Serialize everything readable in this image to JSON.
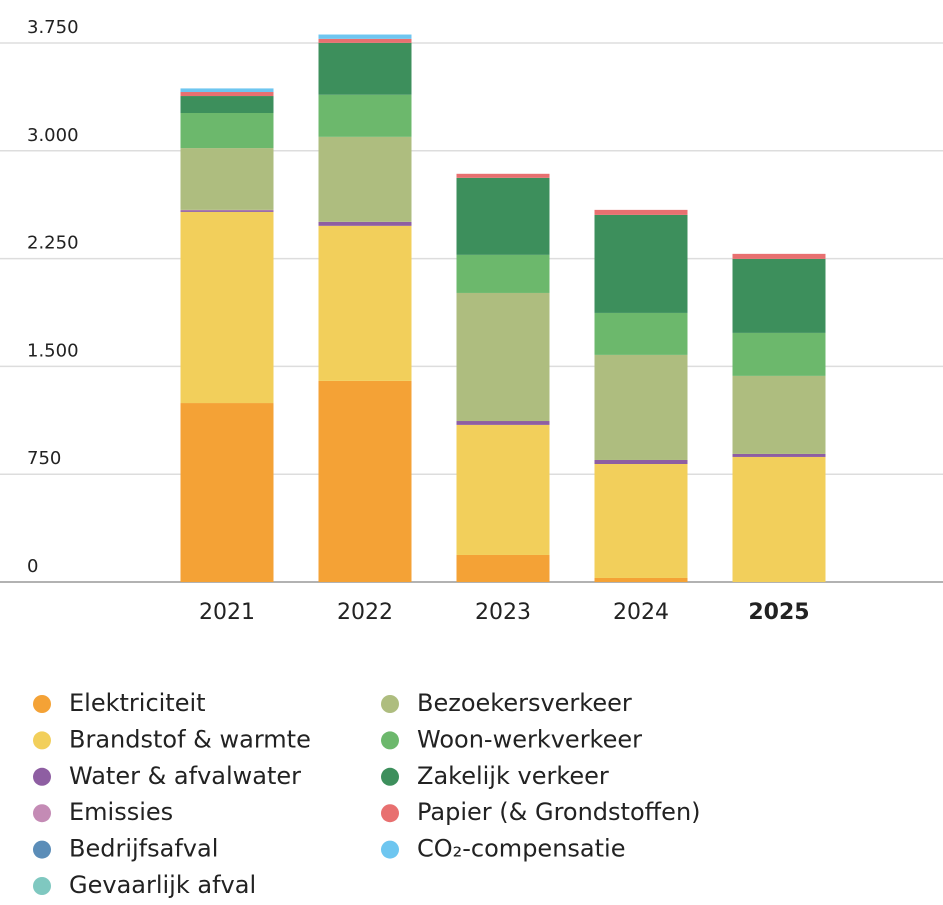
{
  "chart_data": {
    "type": "stacked_bar",
    "categories": [
      "2021",
      "2022",
      "2023",
      "2024",
      "2025"
    ],
    "series": [
      {
        "name": "Elektriciteit",
        "color": "#f4a236",
        "values": [
          1245,
          1399,
          188,
          28,
          0
        ]
      },
      {
        "name": "Brandstof & warmte",
        "color": "#f2cf5b",
        "values": [
          1330,
          1079,
          905,
          793,
          870
        ]
      },
      {
        "name": "Water & afvalwater",
        "color": "#8e5ea2",
        "values": [
          10,
          28,
          27,
          28,
          21
        ]
      },
      {
        "name": "Emissies",
        "color": "#c48bb5",
        "values": [
          4,
          0,
          0,
          0,
          0
        ]
      },
      {
        "name": "Bedrijfsafval",
        "color": "#5b8db8",
        "values": [
          0,
          0,
          0,
          0,
          0
        ]
      },
      {
        "name": "Gevaarlijk afval",
        "color": "#7fc8c0",
        "values": [
          0,
          0,
          0,
          0,
          0
        ]
      },
      {
        "name": "Bezoekersverkeer",
        "color": "#aebd7f",
        "values": [
          430,
          591,
          891,
          731,
          543
        ]
      },
      {
        "name": "Woon-werkverkeer",
        "color": "#6cb86c",
        "values": [
          244,
          293,
          265,
          292,
          299
        ]
      },
      {
        "name": "Zakelijk verkeer",
        "color": "#3d8f5c",
        "values": [
          118,
          361,
          536,
          682,
          515
        ]
      },
      {
        "name": "Papier (& Grondstoffen)",
        "color": "#e87070",
        "values": [
          28,
          28,
          28,
          35,
          35
        ]
      },
      {
        "name": "CO₂-compensatie",
        "color": "#6ec6f0",
        "values": [
          25,
          30,
          0,
          0,
          0
        ]
      }
    ],
    "ylim": [
      0,
      3750
    ],
    "yticks": [
      0,
      {
        "value": 750,
        "label": "750"
      },
      {
        "value": 1500,
        "label": "1.500"
      },
      {
        "value": 2250,
        "label": "2.250"
      },
      {
        "value": 3000,
        "label": "3.000"
      },
      {
        "value": 3750,
        "label": "3.750"
      }
    ],
    "grid": true
  }
}
